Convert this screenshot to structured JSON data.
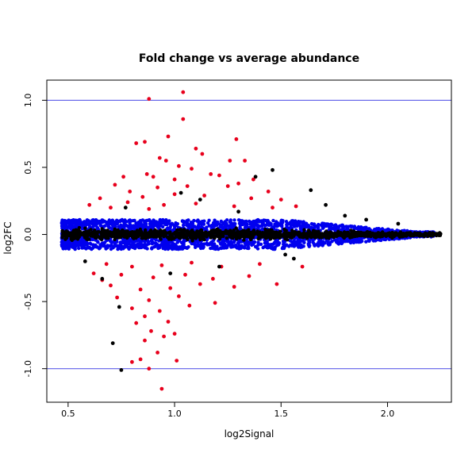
{
  "chart_data": {
    "type": "scatter",
    "title": "Fold change vs average abundance",
    "xlabel": "log2Signal",
    "ylabel": "log2FC",
    "xlim": [
      0.4,
      2.3
    ],
    "ylim": [
      -1.25,
      1.15
    ],
    "x_ticks": [
      {
        "value": 0.5,
        "label": "0.5"
      },
      {
        "value": 1.0,
        "label": "1.0"
      },
      {
        "value": 1.5,
        "label": "1.5"
      },
      {
        "value": 2.0,
        "label": "2.0"
      }
    ],
    "y_ticks": [
      {
        "value": -1.0,
        "label": "-1.0"
      },
      {
        "value": -0.5,
        "label": "-0.5"
      },
      {
        "value": 0.0,
        "label": "0.0"
      },
      {
        "value": 0.5,
        "label": "0.5"
      },
      {
        "value": 1.0,
        "label": "1.0"
      }
    ],
    "reference_lines": [
      {
        "axis": "y",
        "value": 1.0,
        "color": "#4a4ae6"
      },
      {
        "axis": "y",
        "value": -1.0,
        "color": "#4a4ae6"
      }
    ],
    "grid": false,
    "colors": {
      "black": "#000000",
      "blue": "#0000ee",
      "red": "#e8001c"
    },
    "series": [
      {
        "color": "#e8001c",
        "points": [
          [
            0.88,
            1.01
          ],
          [
            1.04,
            1.06
          ],
          [
            1.04,
            0.86
          ],
          [
            0.97,
            0.73
          ],
          [
            0.82,
            0.68
          ],
          [
            0.86,
            0.69
          ],
          [
            1.1,
            0.64
          ],
          [
            1.13,
            0.6
          ],
          [
            1.29,
            0.71
          ],
          [
            0.93,
            0.57
          ],
          [
            0.96,
            0.55
          ],
          [
            1.02,
            0.51
          ],
          [
            1.08,
            0.49
          ],
          [
            1.26,
            0.55
          ],
          [
            1.33,
            0.55
          ],
          [
            0.87,
            0.45
          ],
          [
            0.9,
            0.43
          ],
          [
            1.0,
            0.41
          ],
          [
            1.17,
            0.45
          ],
          [
            1.21,
            0.44
          ],
          [
            1.3,
            0.38
          ],
          [
            1.37,
            0.41
          ],
          [
            0.72,
            0.37
          ],
          [
            0.79,
            0.32
          ],
          [
            0.92,
            0.35
          ],
          [
            1.06,
            0.36
          ],
          [
            1.25,
            0.36
          ],
          [
            1.44,
            0.32
          ],
          [
            0.65,
            0.27
          ],
          [
            0.85,
            0.28
          ],
          [
            1.0,
            0.3
          ],
          [
            1.14,
            0.29
          ],
          [
            1.36,
            0.27
          ],
          [
            1.5,
            0.26
          ],
          [
            0.6,
            0.22
          ],
          [
            0.78,
            0.24
          ],
          [
            0.95,
            0.22
          ],
          [
            1.1,
            0.23
          ],
          [
            1.28,
            0.21
          ],
          [
            1.57,
            0.21
          ],
          [
            0.7,
            0.2
          ],
          [
            0.88,
            0.19
          ],
          [
            0.68,
            -0.22
          ],
          [
            0.8,
            -0.24
          ],
          [
            0.94,
            -0.23
          ],
          [
            1.08,
            -0.21
          ],
          [
            1.22,
            -0.24
          ],
          [
            1.4,
            -0.22
          ],
          [
            0.62,
            -0.29
          ],
          [
            0.75,
            -0.3
          ],
          [
            0.9,
            -0.32
          ],
          [
            1.05,
            -0.3
          ],
          [
            1.18,
            -0.33
          ],
          [
            1.35,
            -0.31
          ],
          [
            0.7,
            -0.38
          ],
          [
            0.84,
            -0.41
          ],
          [
            0.98,
            -0.4
          ],
          [
            1.12,
            -0.37
          ],
          [
            1.28,
            -0.39
          ],
          [
            1.48,
            -0.37
          ],
          [
            0.73,
            -0.47
          ],
          [
            0.88,
            -0.49
          ],
          [
            1.02,
            -0.46
          ],
          [
            1.19,
            -0.51
          ],
          [
            0.8,
            -0.55
          ],
          [
            0.93,
            -0.57
          ],
          [
            1.07,
            -0.53
          ],
          [
            0.86,
            -0.61
          ],
          [
            0.97,
            -0.65
          ],
          [
            0.89,
            -0.72
          ],
          [
            1.0,
            -0.74
          ],
          [
            0.86,
            -0.79
          ],
          [
            0.95,
            -0.76
          ],
          [
            0.84,
            -0.93
          ],
          [
            0.92,
            -0.88
          ],
          [
            0.8,
            -0.95
          ],
          [
            1.01,
            -0.94
          ],
          [
            0.88,
            -1.0
          ],
          [
            0.94,
            -1.15
          ],
          [
            0.66,
            -0.34
          ],
          [
            1.6,
            -0.24
          ],
          [
            1.46,
            0.2
          ],
          [
            0.76,
            0.43
          ],
          [
            0.82,
            -0.66
          ]
        ]
      },
      {
        "color": "#000000",
        "points": [
          [
            1.46,
            0.48
          ],
          [
            1.38,
            0.43
          ],
          [
            1.64,
            0.33
          ],
          [
            1.71,
            0.22
          ],
          [
            0.66,
            -0.33
          ],
          [
            0.74,
            -0.54
          ],
          [
            0.71,
            -0.81
          ],
          [
            0.75,
            -1.01
          ],
          [
            1.21,
            -0.24
          ],
          [
            1.56,
            -0.18
          ],
          [
            1.03,
            0.31
          ],
          [
            1.12,
            0.26
          ],
          [
            1.8,
            0.14
          ],
          [
            1.9,
            0.11
          ],
          [
            2.05,
            0.08
          ],
          [
            0.58,
            -0.2
          ],
          [
            0.77,
            0.2
          ],
          [
            1.3,
            0.17
          ],
          [
            1.52,
            -0.15
          ],
          [
            0.98,
            -0.29
          ]
        ]
      }
    ]
  }
}
